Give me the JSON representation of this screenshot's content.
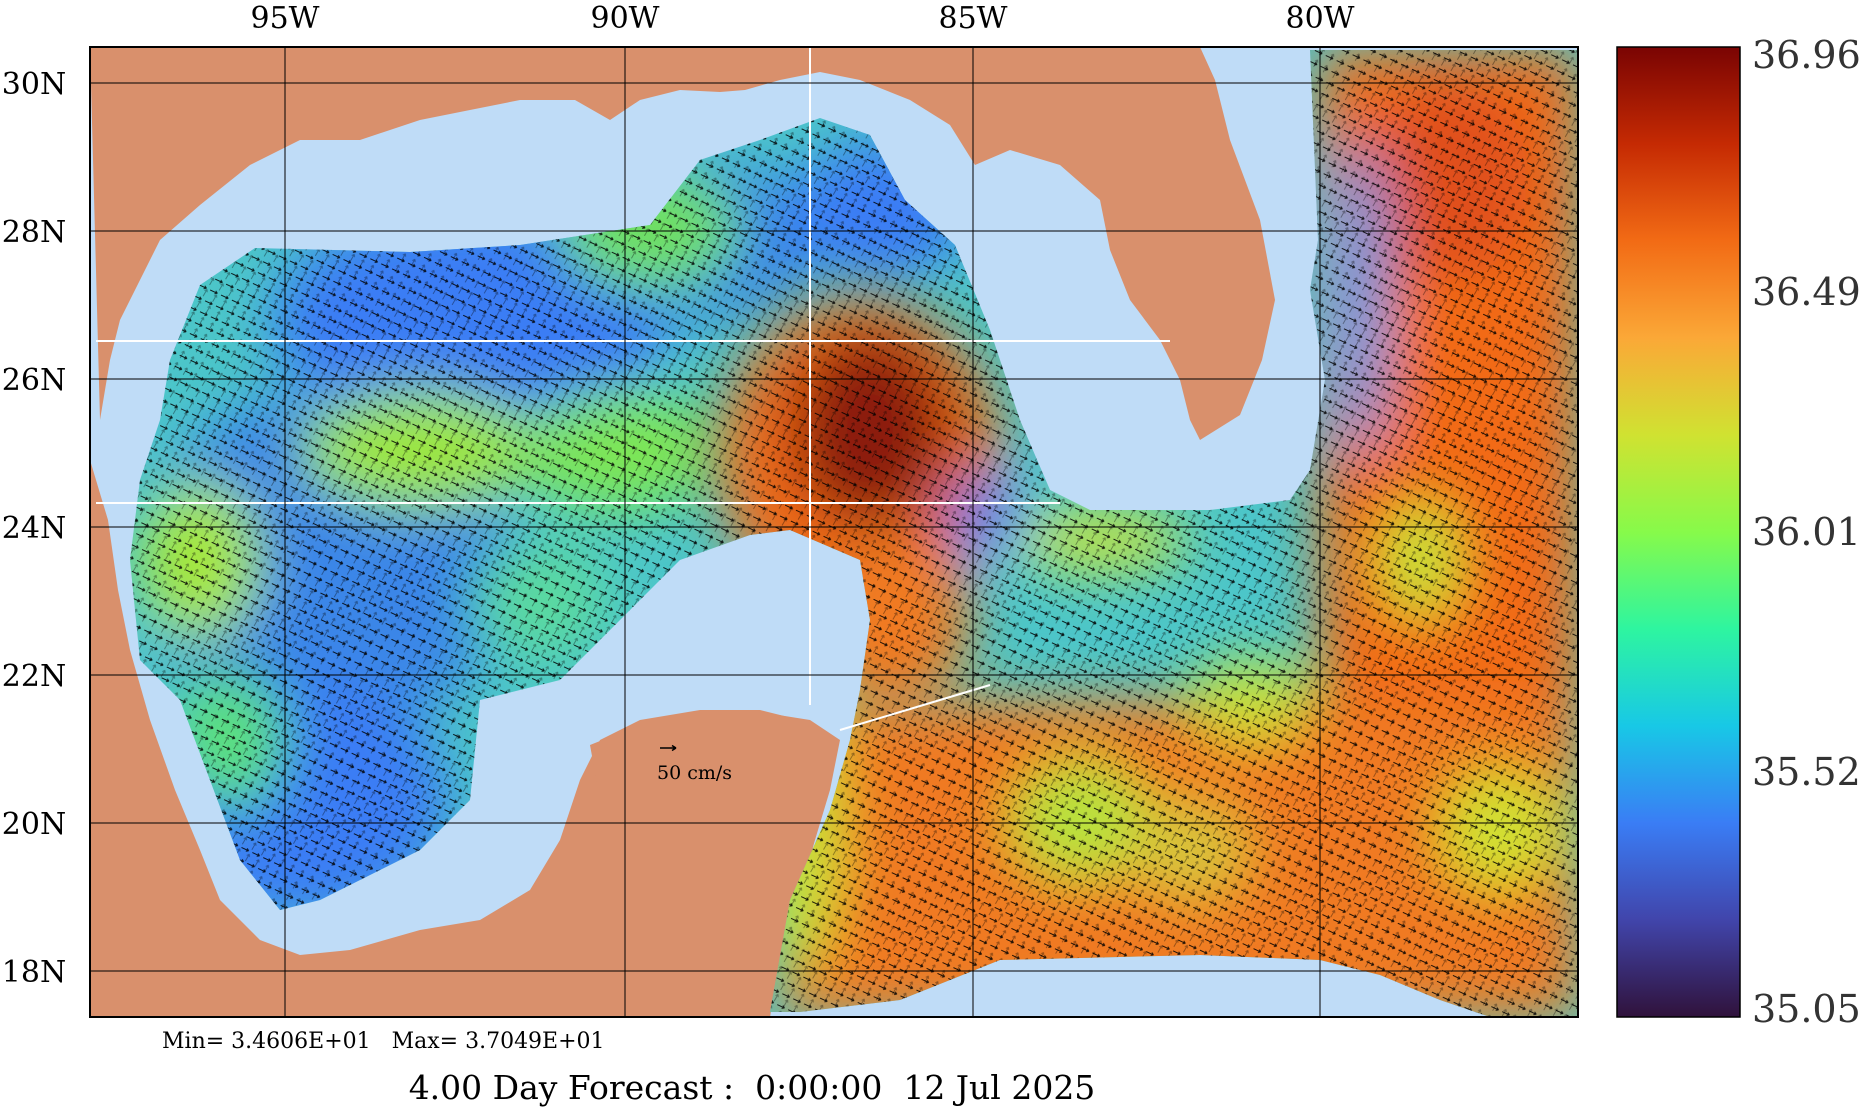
{
  "map": {
    "lon_labels": [
      "95W",
      "90W",
      "85W",
      "80W"
    ],
    "lat_labels": [
      "30N",
      "28N",
      "26N",
      "24N",
      "22N",
      "20N",
      "18N"
    ],
    "vector_scale_label": "50 cm/s",
    "stats": "Min= 3.4606E+01   Max= 3.7049E+01",
    "footer": "4.00 Day Forecast :  0:00:00  12 Jul 2025"
  },
  "colorbar": {
    "ticks": [
      "36.96",
      "36.49",
      "36.01",
      "35.52",
      "35.05"
    ],
    "stops": [
      "#7a0403",
      "#c52a03",
      "#f26b15",
      "#fba837",
      "#d0e231",
      "#87fa4a",
      "#2ef5a0",
      "#18c8e6",
      "#3a7df5",
      "#4145ab",
      "#30123b"
    ]
  },
  "colors": {
    "land": "#d9906c",
    "shelf": "#bfdcf7",
    "grid": "#000000"
  }
}
